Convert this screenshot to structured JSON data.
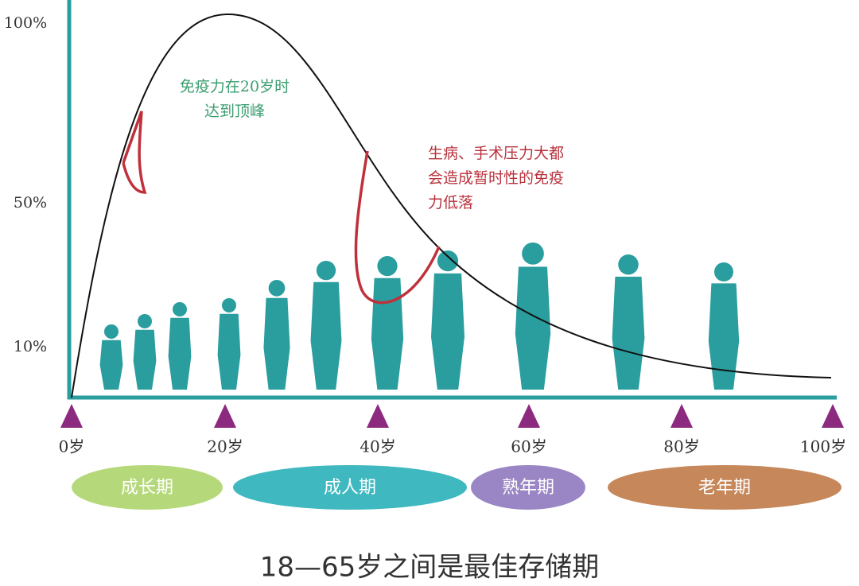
{
  "y_axis": {
    "labels": [
      "100%",
      "50%",
      "10%"
    ]
  },
  "x_axis": {
    "labels": [
      "0岁",
      "20岁",
      "40岁",
      "60岁",
      "80岁",
      "100岁"
    ]
  },
  "stages": [
    "成长期",
    "成人期",
    "熟年期",
    "老年期"
  ],
  "annotations": [
    {
      "lines": [
        "免疫力在20岁时",
        "达到顶峰"
      ]
    },
    {
      "lines": [
        "生病、手术压力大都",
        "会造成暂时性的免疫",
        "力低落"
      ]
    }
  ],
  "footer": "18—65岁之间是最佳存储期"
}
